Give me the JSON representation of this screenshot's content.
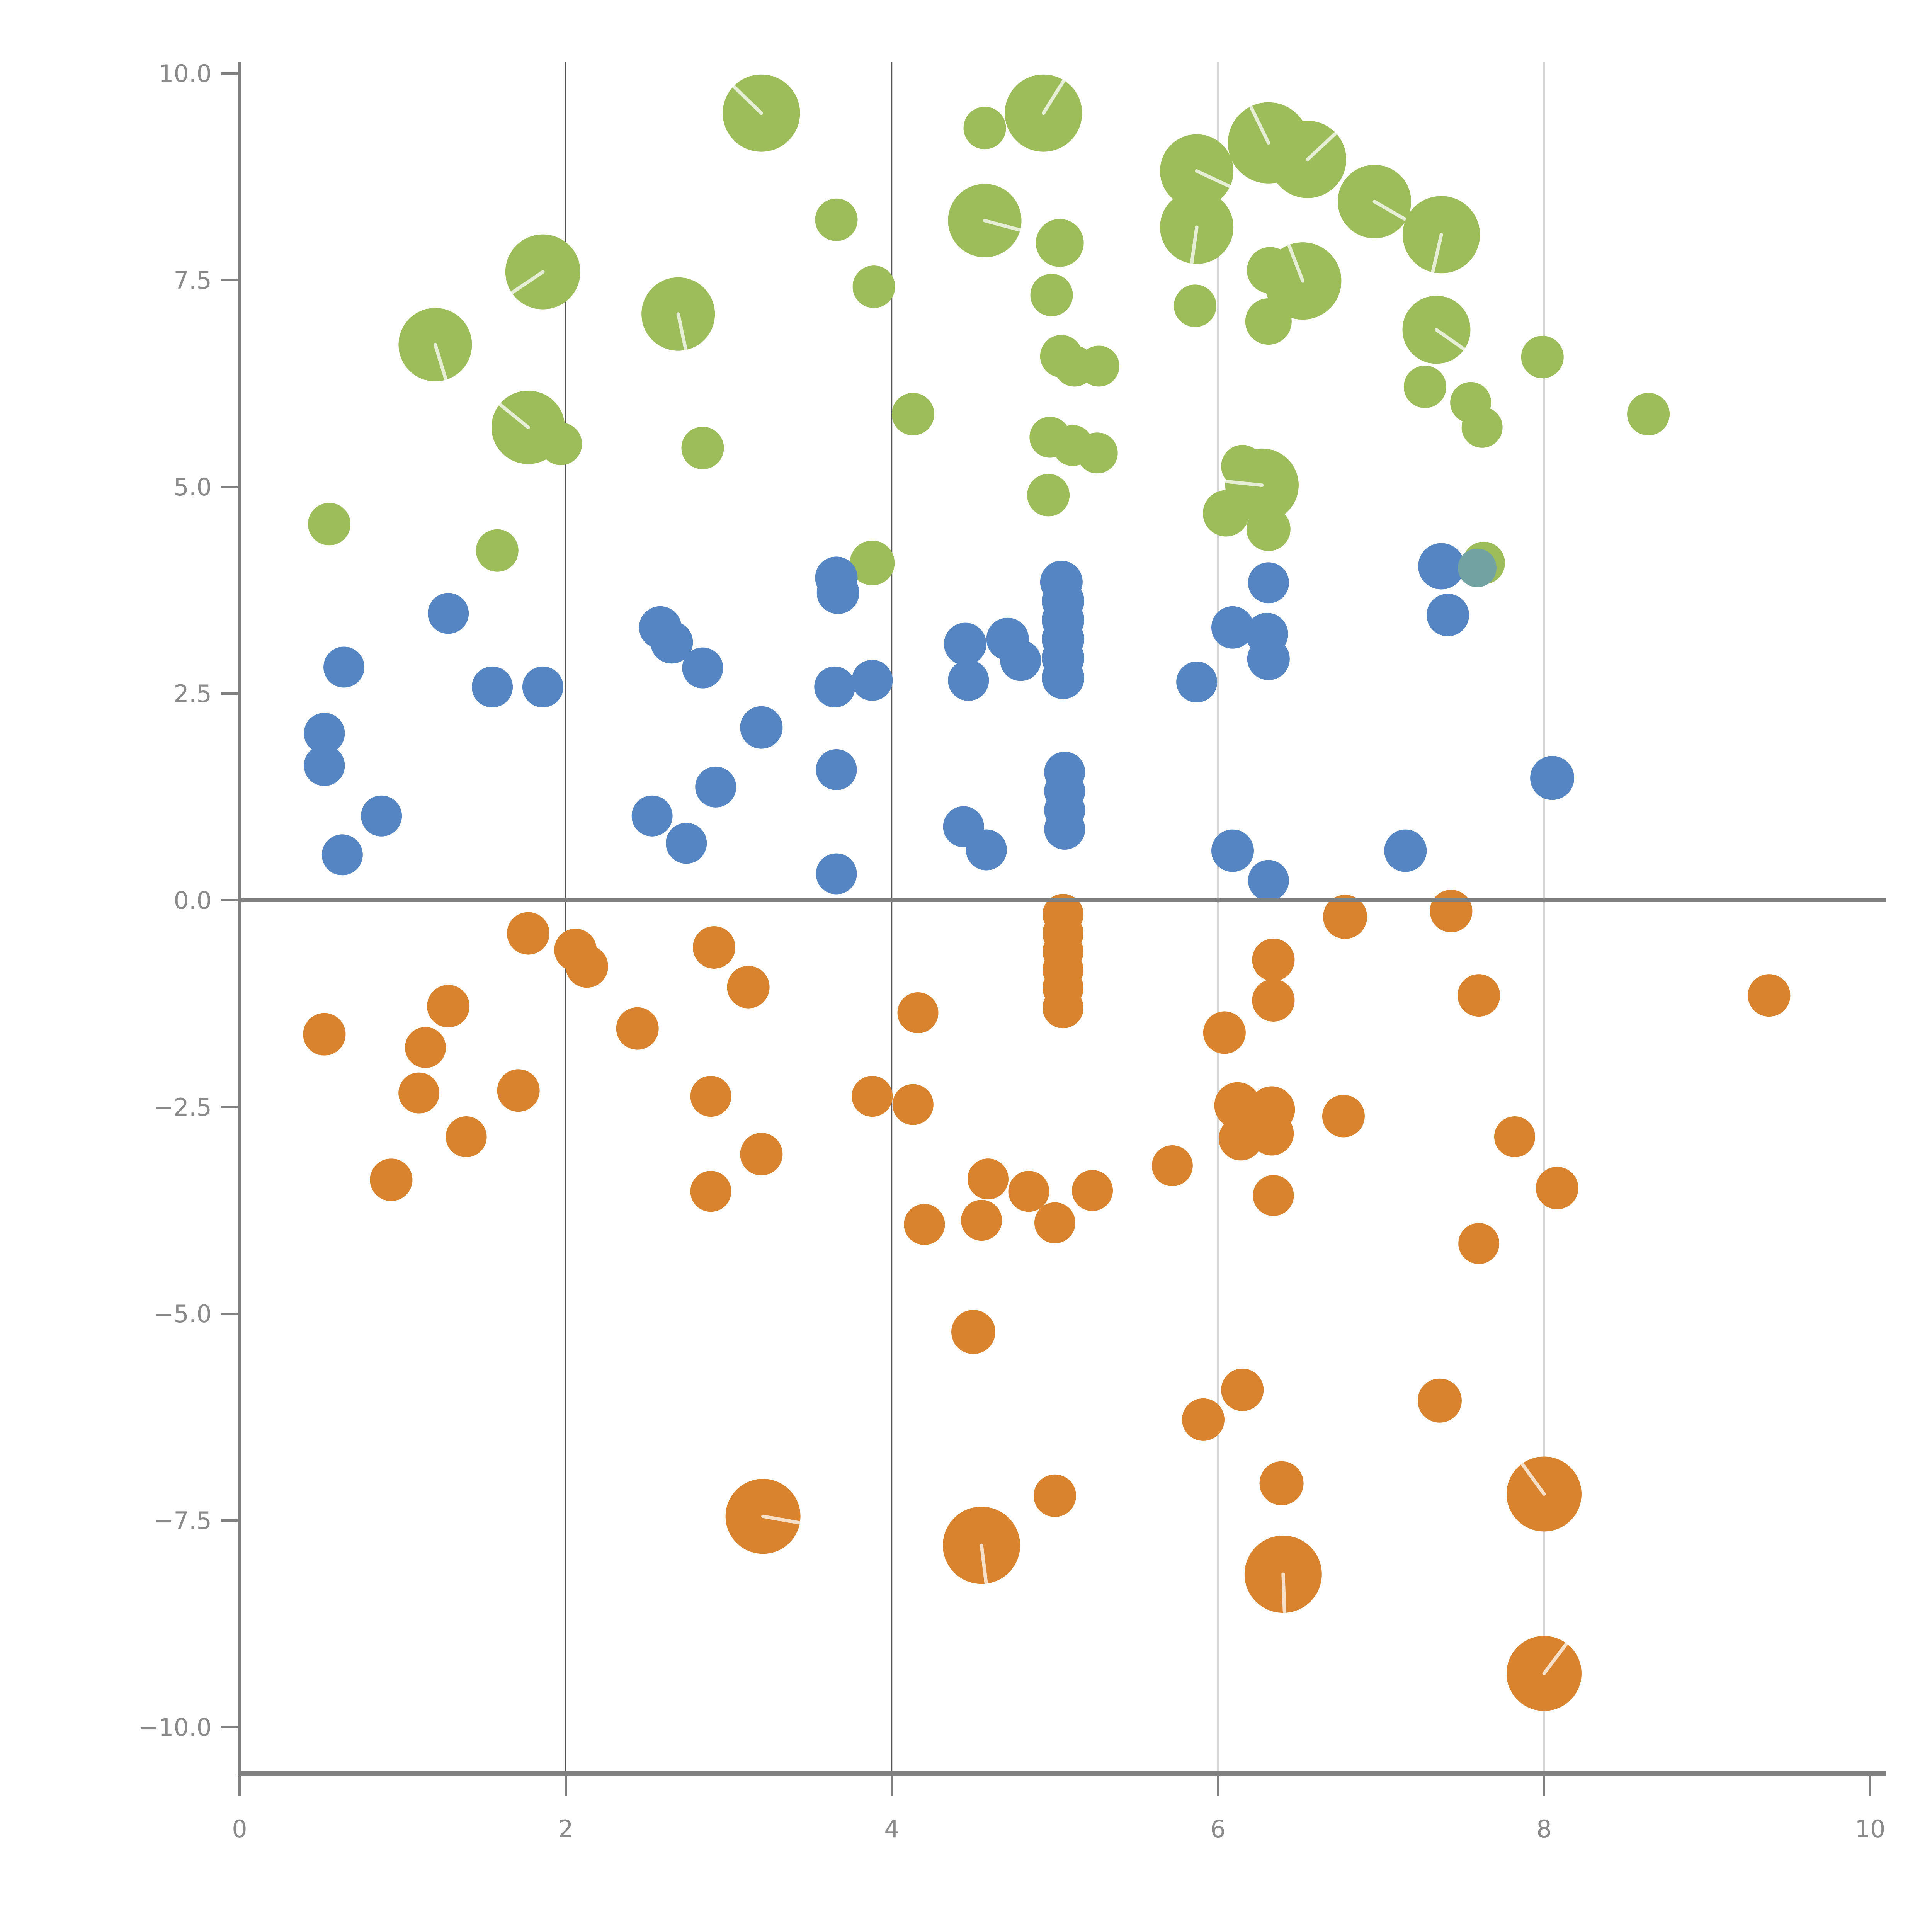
{
  "chart_data": {
    "type": "scatter",
    "title": "",
    "subtitle": "",
    "xlabel": "",
    "ylabel": "",
    "xlim": [
      0,
      10
    ],
    "ylim": [
      -10,
      10
    ],
    "grid": "vertical-only",
    "legend_position": "none",
    "x_ticks": [
      {
        "label": "0",
        "value": 0
      },
      {
        "label": "2",
        "value": 2
      },
      {
        "label": "4",
        "value": 4
      },
      {
        "label": "6",
        "value": 6
      },
      {
        "label": "8",
        "value": 8
      },
      {
        "label": "10",
        "value": 10
      }
    ],
    "y_ticks": [
      {
        "label": "10.0",
        "value": 10
      },
      {
        "label": "7.5",
        "value": 7.5
      },
      {
        "label": "5.0",
        "value": 5
      },
      {
        "label": "2.5",
        "value": 2.5
      },
      {
        "label": "0.0",
        "value": 0
      },
      {
        "label": "−2.5",
        "value": -2.5
      },
      {
        "label": "−5.0",
        "value": -5
      },
      {
        "label": "−7.5",
        "value": -7.5
      },
      {
        "label": "−10.0",
        "value": -10
      }
    ],
    "gridline_x_values": [
      2,
      4,
      6,
      8
    ],
    "zero_line_y": 0,
    "colors": {
      "axis": "#808080",
      "gridline": "#555555",
      "tick_label": "#8a8a8a",
      "green": "#9cbd59",
      "blue": "#5585c2",
      "orange": "#d9832e",
      "teal_overlap": "#73a2a3",
      "seam": "#ffffff"
    },
    "series": [
      {
        "name": "green",
        "color": "#9cbd59",
        "points": [
          [
            0.55,
            4.55,
            55
          ],
          [
            1.2,
            6.72,
            95
          ],
          [
            1.86,
            7.6,
            97
          ],
          [
            1.77,
            5.72,
            95
          ],
          [
            1.97,
            5.52,
            55
          ],
          [
            1.58,
            4.23,
            55
          ],
          [
            2.69,
            7.09,
            95
          ],
          [
            2.84,
            5.47,
            55
          ],
          [
            3.2,
            9.52,
            100
          ],
          [
            3.66,
            8.23,
            55
          ],
          [
            3.89,
            7.42,
            55
          ],
          [
            4.13,
            5.88,
            55
          ],
          [
            3.88,
            4.08,
            58
          ],
          [
            4.57,
            9.34,
            55
          ],
          [
            4.93,
            9.52,
            100
          ],
          [
            4.57,
            8.22,
            95
          ],
          [
            5.03,
            7.95,
            62
          ],
          [
            4.98,
            7.32,
            55
          ],
          [
            5.04,
            6.58,
            55
          ],
          [
            5.12,
            6.46,
            53
          ],
          [
            5.27,
            6.46,
            53
          ],
          [
            4.97,
            5.6,
            53
          ],
          [
            5.11,
            5.5,
            53
          ],
          [
            5.26,
            5.41,
            53
          ],
          [
            4.96,
            4.9,
            55
          ],
          [
            5.87,
            8.82,
            95
          ],
          [
            5.87,
            8.14,
            95
          ],
          [
            5.86,
            7.19,
            55
          ],
          [
            6.31,
            9.16,
            105
          ],
          [
            6.55,
            8.96,
            100
          ],
          [
            6.96,
            8.45,
            95
          ],
          [
            7.37,
            8.05,
            100
          ],
          [
            6.32,
            7.62,
            60
          ],
          [
            6.52,
            7.49,
            100
          ],
          [
            6.31,
            7.0,
            60
          ],
          [
            7.34,
            6.9,
            88
          ],
          [
            7.27,
            6.21,
            55
          ],
          [
            7.99,
            6.57,
            55
          ],
          [
            7.55,
            6.02,
            53
          ],
          [
            7.62,
            5.72,
            53
          ],
          [
            8.64,
            5.88,
            55
          ],
          [
            6.15,
            5.25,
            55
          ],
          [
            6.27,
            5.02,
            95
          ],
          [
            6.05,
            4.68,
            60
          ],
          [
            6.31,
            4.49,
            57
          ],
          [
            7.63,
            4.08,
            55
          ]
        ]
      },
      {
        "name": "blue",
        "color": "#5585c2",
        "points": [
          [
            0.52,
            2.02,
            53
          ],
          [
            0.52,
            1.63,
            53
          ],
          [
            0.64,
            2.82,
            53
          ],
          [
            0.63,
            0.55,
            53
          ],
          [
            0.87,
            1.02,
            53
          ],
          [
            1.28,
            3.47,
            53
          ],
          [
            1.55,
            2.58,
            53
          ],
          [
            1.86,
            2.58,
            53
          ],
          [
            2.53,
            1.02,
            53
          ],
          [
            2.58,
            3.3,
            55
          ],
          [
            2.65,
            3.12,
            55
          ],
          [
            2.84,
            2.81,
            53
          ],
          [
            2.92,
            1.37,
            53
          ],
          [
            2.74,
            0.69,
            53
          ],
          [
            3.2,
            2.09,
            55
          ],
          [
            3.66,
            3.9,
            55
          ],
          [
            3.67,
            3.72,
            55
          ],
          [
            3.65,
            2.58,
            53
          ],
          [
            3.88,
            2.66,
            53
          ],
          [
            3.66,
            1.58,
            53
          ],
          [
            3.66,
            0.32,
            53
          ],
          [
            4.45,
            3.1,
            55
          ],
          [
            4.71,
            3.16,
            55
          ],
          [
            4.47,
            2.66,
            53
          ],
          [
            4.79,
            2.9,
            53
          ],
          [
            4.44,
            0.89,
            53
          ],
          [
            4.58,
            0.61,
            53
          ],
          [
            5.04,
            3.85,
            55
          ],
          [
            5.05,
            3.62,
            55
          ],
          [
            5.05,
            3.39,
            55
          ],
          [
            5.05,
            3.16,
            55
          ],
          [
            5.05,
            2.93,
            55
          ],
          [
            5.05,
            2.69,
            55
          ],
          [
            5.06,
            1.55,
            53
          ],
          [
            5.06,
            1.32,
            53
          ],
          [
            5.06,
            1.09,
            53
          ],
          [
            5.06,
            0.86,
            53
          ],
          [
            5.87,
            2.64,
            53
          ],
          [
            6.09,
            3.3,
            55
          ],
          [
            6.3,
            3.22,
            55
          ],
          [
            6.31,
            2.92,
            55
          ],
          [
            6.31,
            3.84,
            53
          ],
          [
            6.09,
            0.6,
            55
          ],
          [
            6.31,
            0.24,
            53
          ],
          [
            7.15,
            0.6,
            55
          ],
          [
            7.37,
            4.04,
            60
          ],
          [
            7.41,
            3.45,
            55
          ],
          [
            8.05,
            1.48,
            57
          ]
        ]
      },
      {
        "name": "teal-overlap",
        "color": "#73a2a3",
        "points": [
          [
            7.59,
            4.02,
            50
          ]
        ]
      },
      {
        "name": "orange",
        "color": "#d9832e",
        "points": [
          [
            0.52,
            -1.62,
            55
          ],
          [
            1.28,
            -1.28,
            55
          ],
          [
            1.14,
            -1.78,
            53
          ],
          [
            1.1,
            -2.33,
            53
          ],
          [
            1.39,
            -2.86,
            53
          ],
          [
            0.93,
            -3.38,
            55
          ],
          [
            1.71,
            -2.3,
            55
          ],
          [
            1.77,
            -0.4,
            55
          ],
          [
            2.06,
            -0.6,
            55
          ],
          [
            2.13,
            -0.8,
            55
          ],
          [
            2.44,
            -1.55,
            55
          ],
          [
            2.91,
            -0.57,
            55
          ],
          [
            3.12,
            -1.05,
            55
          ],
          [
            2.89,
            -2.37,
            53
          ],
          [
            3.2,
            -3.07,
            55
          ],
          [
            2.89,
            -3.52,
            53
          ],
          [
            3.88,
            -2.37,
            53
          ],
          [
            4.13,
            -2.47,
            53
          ],
          [
            4.16,
            -1.36,
            53
          ],
          [
            4.2,
            -3.92,
            53
          ],
          [
            4.55,
            -3.87,
            53
          ],
          [
            4.59,
            -3.37,
            53
          ],
          [
            4.84,
            -3.52,
            53
          ],
          [
            5.0,
            -3.9,
            53
          ],
          [
            5.05,
            -0.17,
            53
          ],
          [
            5.05,
            -0.4,
            53
          ],
          [
            5.05,
            -0.62,
            53
          ],
          [
            5.05,
            -0.84,
            53
          ],
          [
            5.05,
            -1.06,
            53
          ],
          [
            5.05,
            -1.3,
            53
          ],
          [
            5.23,
            -3.51,
            53
          ],
          [
            5.72,
            -3.21,
            53
          ],
          [
            6.04,
            -1.6,
            55
          ],
          [
            6.34,
            -0.72,
            55
          ],
          [
            6.34,
            -1.21,
            55
          ],
          [
            6.12,
            -2.48,
            60
          ],
          [
            6.33,
            -2.53,
            60
          ],
          [
            6.14,
            -2.88,
            57
          ],
          [
            6.33,
            -2.82,
            57
          ],
          [
            6.77,
            -2.61,
            55
          ],
          [
            6.78,
            -0.2,
            57
          ],
          [
            7.43,
            -0.13,
            55
          ],
          [
            6.34,
            -3.57,
            53
          ],
          [
            7.6,
            -1.15,
            55
          ],
          [
            9.38,
            -1.15,
            55
          ],
          [
            7.82,
            -2.86,
            53
          ],
          [
            8.08,
            -3.48,
            55
          ],
          [
            7.6,
            -4.15,
            53
          ],
          [
            4.5,
            -5.22,
            57
          ],
          [
            3.21,
            -7.45,
            97
          ],
          [
            4.55,
            -7.8,
            100
          ],
          [
            5.0,
            -7.2,
            55
          ],
          [
            6.15,
            -5.92,
            55
          ],
          [
            5.91,
            -6.28,
            55
          ],
          [
            6.39,
            -7.05,
            57
          ],
          [
            6.4,
            -8.15,
            100
          ],
          [
            7.36,
            -6.05,
            57
          ],
          [
            8.0,
            -7.18,
            97
          ],
          [
            8.0,
            -9.35,
            97
          ]
        ]
      }
    ]
  }
}
